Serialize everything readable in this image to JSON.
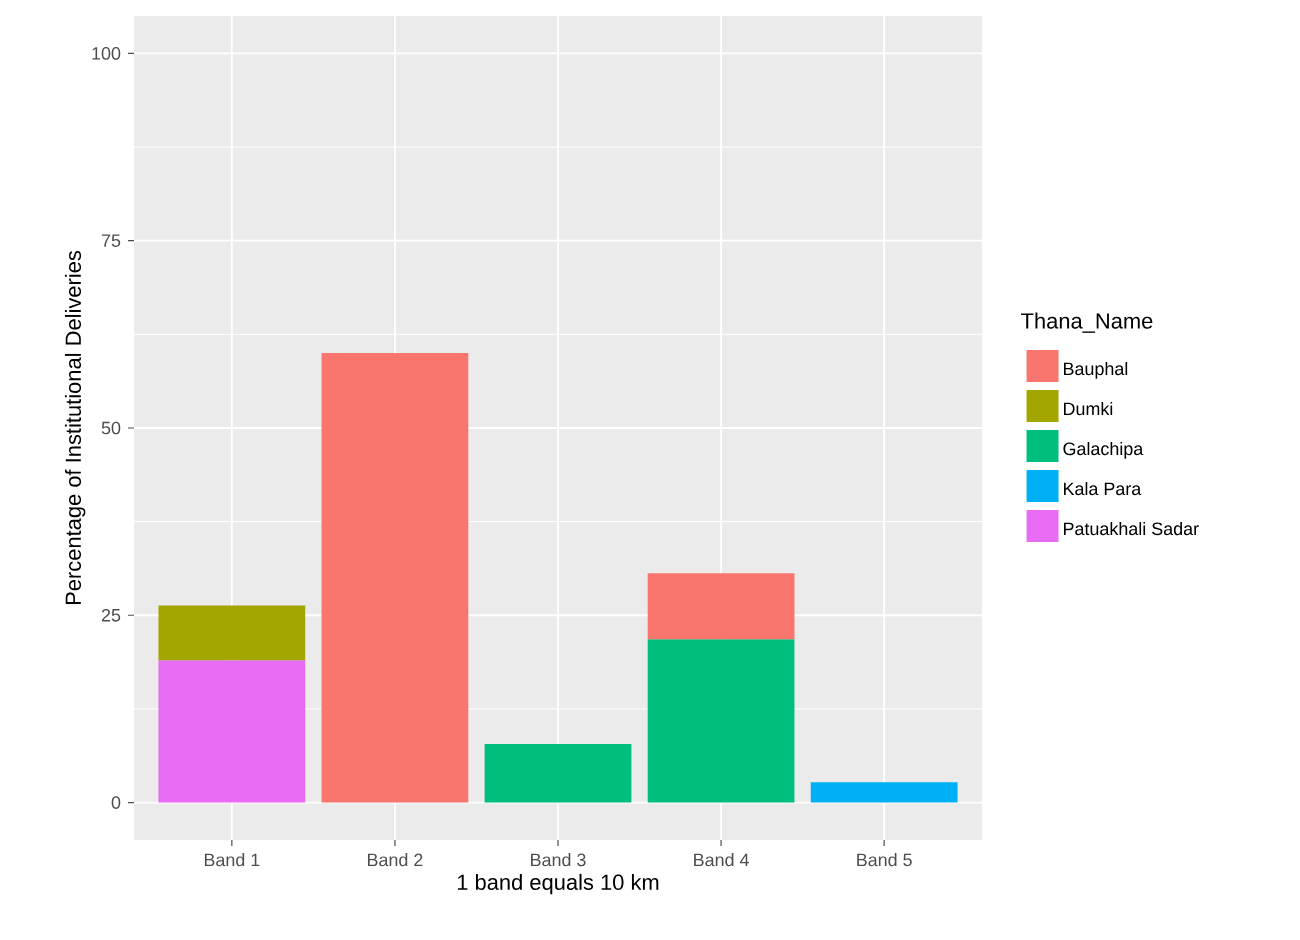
{
  "chart_data": {
    "type": "bar",
    "stacked": true,
    "xlabel": "1 band equals 10 km",
    "ylabel": "Percentage of Institutional Deliveries",
    "legend_title": "Thana_Name",
    "categories": [
      "Band 1",
      "Band 2",
      "Band 3",
      "Band 4",
      "Band 5"
    ],
    "series": [
      {
        "name": "Patuakhali Sadar",
        "color": "#e76bf3",
        "values": [
          19,
          null,
          null,
          null,
          null
        ]
      },
      {
        "name": "Kala Para",
        "color": "#00b0f6",
        "values": [
          null,
          null,
          null,
          null,
          2.7
        ]
      },
      {
        "name": "Galachipa",
        "color": "#00bf7d",
        "values": [
          null,
          null,
          7.8,
          21.8,
          null
        ]
      },
      {
        "name": "Dumki",
        "color": "#a3a500",
        "values": [
          7.3,
          null,
          null,
          null,
          null
        ]
      },
      {
        "name": "Bauphal",
        "color": "#f8766d",
        "values": [
          null,
          60,
          null,
          8.8,
          null
        ]
      }
    ],
    "ylim": [
      -5,
      105
    ],
    "yticks": [
      0,
      25,
      50,
      75,
      100
    ],
    "grid": true,
    "legend": "right"
  }
}
